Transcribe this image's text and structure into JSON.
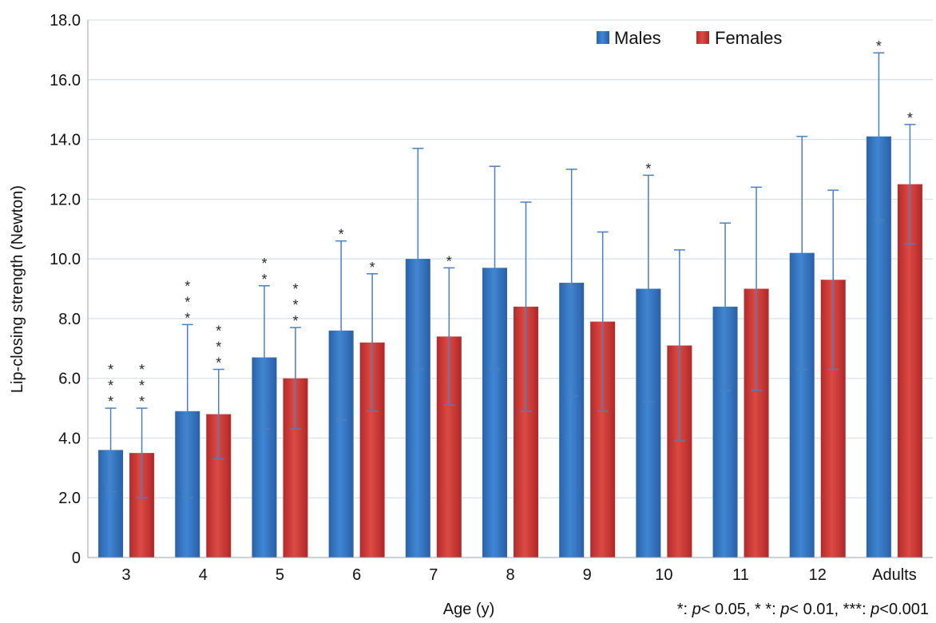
{
  "chart_data": {
    "type": "bar",
    "xlabel": "Age (y)",
    "ylabel": "Lip-closing strength (Newton)",
    "ylim": [
      0,
      18
    ],
    "yticks": [
      "0",
      "2.0",
      "4.0",
      "6.0",
      "8.0",
      "10.0",
      "12.0",
      "14.0",
      "16.0",
      "18.0"
    ],
    "grid": true,
    "legend_position": "top-right",
    "categories": [
      "3",
      "4",
      "5",
      "6",
      "7",
      "8",
      "9",
      "10",
      "11",
      "12",
      "Adults"
    ],
    "series": [
      {
        "name": "Males",
        "color": "#2f6db8",
        "values": [
          3.6,
          4.9,
          6.7,
          7.6,
          10.0,
          9.7,
          9.2,
          9.0,
          8.4,
          10.2,
          14.1
        ],
        "sd": [
          1.4,
          2.9,
          2.4,
          3.0,
          3.7,
          3.4,
          3.8,
          3.8,
          2.8,
          3.9,
          2.8
        ],
        "significance": [
          "***",
          "***",
          "**",
          "*",
          "",
          "",
          "",
          "*",
          "",
          "",
          "*"
        ]
      },
      {
        "name": "Females",
        "color": "#c83232",
        "values": [
          3.5,
          4.8,
          6.0,
          7.2,
          7.4,
          8.4,
          7.9,
          7.1,
          9.0,
          9.3,
          12.5
        ],
        "sd": [
          1.5,
          1.5,
          1.7,
          2.3,
          2.3,
          3.5,
          3.0,
          3.2,
          3.4,
          3.0,
          2.0
        ],
        "significance": [
          "***",
          "***",
          "***",
          "*",
          "*",
          "",
          "",
          "",
          "",
          "",
          "*"
        ]
      }
    ],
    "footnote": [
      {
        "text": "*: ",
        "italic": false
      },
      {
        "text": "p",
        "italic": true
      },
      {
        "text": "< 0.05, * *: ",
        "italic": false
      },
      {
        "text": "p",
        "italic": true
      },
      {
        "text": "< 0.01, ***: ",
        "italic": false
      },
      {
        "text": "p",
        "italic": true
      },
      {
        "text": "<0.001",
        "italic": false
      }
    ]
  }
}
